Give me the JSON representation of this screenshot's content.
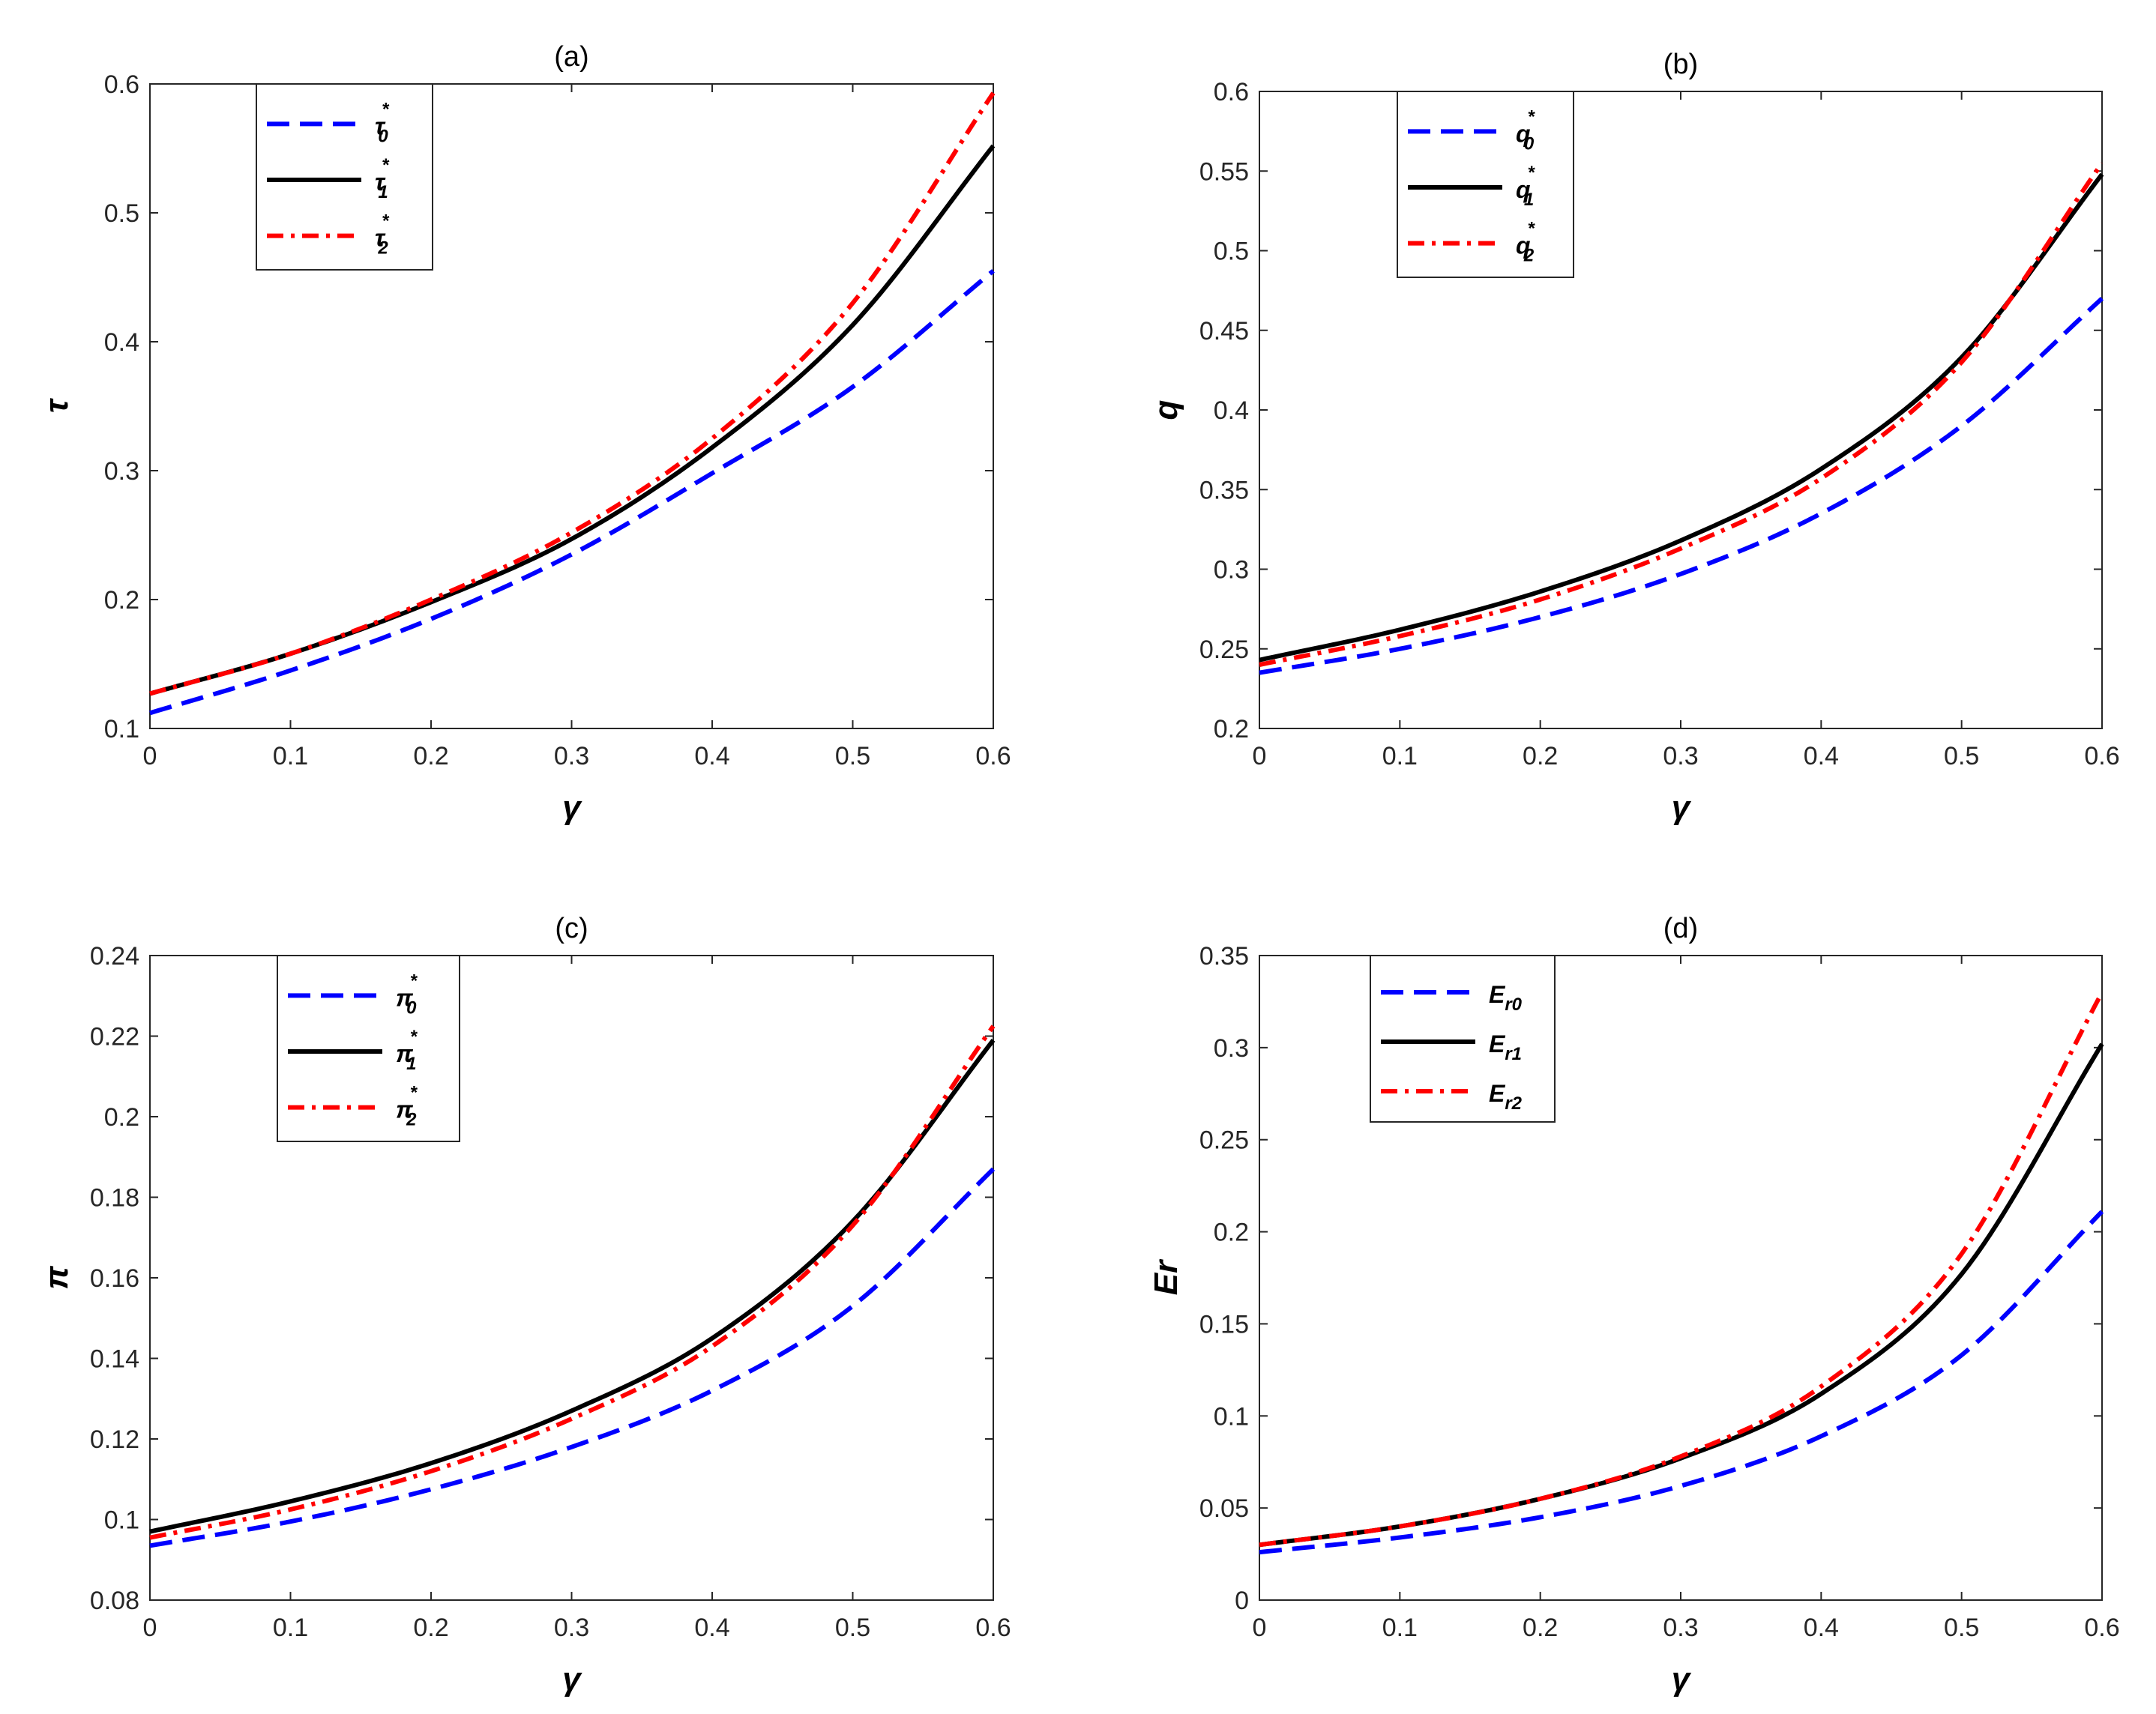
{
  "chart_data": [
    {
      "type": "line",
      "title": "(a)",
      "xlabel": "γ",
      "ylabel": "τ",
      "xlim": [
        0,
        0.6
      ],
      "ylim": [
        0.1,
        0.6
      ],
      "xticks": [
        "0",
        "0.1",
        "0.2",
        "0.3",
        "0.4",
        "0.5",
        "0.6"
      ],
      "yticks": [
        "0.1",
        "0.2",
        "0.3",
        "0.4",
        "0.5",
        "0.6"
      ],
      "legend_position": "top-left",
      "x": [
        0,
        0.1,
        0.2,
        0.3,
        0.4,
        0.5,
        0.6
      ],
      "series": [
        {
          "name": "τ0*",
          "symbol": "τ",
          "sub": "0",
          "sup": "*",
          "style": "dashed",
          "color": "#0000ff",
          "values": [
            0.112,
            0.145,
            0.185,
            0.235,
            0.298,
            0.365,
            0.455
          ]
        },
        {
          "name": "τ1*",
          "symbol": "τ",
          "sub": "1",
          "sup": "*",
          "style": "solid",
          "color": "#000000",
          "values": [
            0.127,
            0.158,
            0.198,
            0.247,
            0.318,
            0.413,
            0.552
          ]
        },
        {
          "name": "τ2*",
          "symbol": "τ",
          "sub": "2",
          "sup": "*",
          "style": "dashdot",
          "color": "#ff0000",
          "values": [
            0.127,
            0.158,
            0.2,
            0.252,
            0.325,
            0.43,
            0.593
          ]
        }
      ]
    },
    {
      "type": "line",
      "title": "(b)",
      "xlabel": "γ",
      "ylabel": "q",
      "xlim": [
        0,
        0.6
      ],
      "ylim": [
        0.2,
        0.6
      ],
      "xticks": [
        "0",
        "0.1",
        "0.2",
        "0.3",
        "0.4",
        "0.5",
        "0.6"
      ],
      "yticks": [
        "0.2",
        "0.25",
        "0.3",
        "0.35",
        "0.4",
        "0.45",
        "0.5",
        "0.55",
        "0.6"
      ],
      "legend_position": "top-left",
      "x": [
        0,
        0.1,
        0.2,
        0.3,
        0.4,
        0.5,
        0.6
      ],
      "series": [
        {
          "name": "q0*",
          "symbol": "q",
          "sub": "0",
          "sup": "*",
          "style": "dashed",
          "color": "#0000ff",
          "values": [
            0.235,
            0.25,
            0.27,
            0.297,
            0.335,
            0.39,
            0.47
          ]
        },
        {
          "name": "q1*",
          "symbol": "q",
          "sub": "1",
          "sup": "*",
          "style": "solid",
          "color": "#000000",
          "values": [
            0.243,
            0.262,
            0.286,
            0.318,
            0.363,
            0.433,
            0.548
          ]
        },
        {
          "name": "q2*",
          "symbol": "q",
          "sub": "2",
          "sup": "*",
          "style": "dashdot",
          "color": "#ff0000",
          "values": [
            0.24,
            0.258,
            0.281,
            0.313,
            0.357,
            0.43,
            0.555
          ]
        }
      ]
    },
    {
      "type": "line",
      "title": "(c)",
      "xlabel": "γ",
      "ylabel": "π",
      "xlim": [
        0,
        0.6
      ],
      "ylim": [
        0.08,
        0.24
      ],
      "xticks": [
        "0",
        "0.1",
        "0.2",
        "0.3",
        "0.4",
        "0.5",
        "0.6"
      ],
      "yticks": [
        "0.08",
        "0.1",
        "0.12",
        "0.14",
        "0.16",
        "0.18",
        "0.2",
        "0.22",
        "0.24"
      ],
      "legend_position": "top-left",
      "x": [
        0,
        0.1,
        0.2,
        0.3,
        0.4,
        0.5,
        0.6
      ],
      "series": [
        {
          "name": "π0*",
          "symbol": "π",
          "sub": "0",
          "sup": "*",
          "style": "dashed",
          "color": "#0000ff",
          "values": [
            0.0935,
            0.0995,
            0.1075,
            0.118,
            0.132,
            0.153,
            0.187
          ]
        },
        {
          "name": "π1*",
          "symbol": "π",
          "sub": "1",
          "sup": "*",
          "style": "solid",
          "color": "#000000",
          "values": [
            0.097,
            0.1045,
            0.114,
            0.127,
            0.145,
            0.174,
            0.219
          ]
        },
        {
          "name": "π2*",
          "symbol": "π",
          "sub": "2",
          "sup": "*",
          "style": "dashdot",
          "color": "#ff0000",
          "values": [
            0.0955,
            0.1025,
            0.112,
            0.125,
            0.143,
            0.173,
            0.2225
          ]
        }
      ]
    },
    {
      "type": "line",
      "title": "(d)",
      "xlabel": "γ",
      "ylabel": "Er",
      "xlim": [
        0,
        0.6
      ],
      "ylim": [
        0,
        0.35
      ],
      "xticks": [
        "0",
        "0.1",
        "0.2",
        "0.3",
        "0.4",
        "0.5",
        "0.6"
      ],
      "yticks": [
        "0",
        "0.05",
        "0.1",
        "0.15",
        "0.2",
        "0.25",
        "0.3",
        "0.35"
      ],
      "legend_position": "top-left",
      "x": [
        0,
        0.1,
        0.2,
        0.3,
        0.4,
        0.5,
        0.6
      ],
      "series": [
        {
          "name": "Er0",
          "symbol": "E",
          "sub": "r0",
          "sup": "",
          "style": "dashed",
          "color": "#0000ff",
          "values": [
            0.026,
            0.034,
            0.045,
            0.062,
            0.089,
            0.133,
            0.211
          ]
        },
        {
          "name": "Er1",
          "symbol": "E",
          "sub": "r1",
          "sup": "",
          "style": "solid",
          "color": "#000000",
          "values": [
            0.03,
            0.04,
            0.055,
            0.077,
            0.112,
            0.177,
            0.302
          ]
        },
        {
          "name": "Er2",
          "symbol": "E",
          "sub": "r2",
          "sup": "",
          "style": "dashdot",
          "color": "#ff0000",
          "values": [
            0.03,
            0.04,
            0.055,
            0.078,
            0.116,
            0.188,
            0.33
          ]
        }
      ]
    }
  ]
}
